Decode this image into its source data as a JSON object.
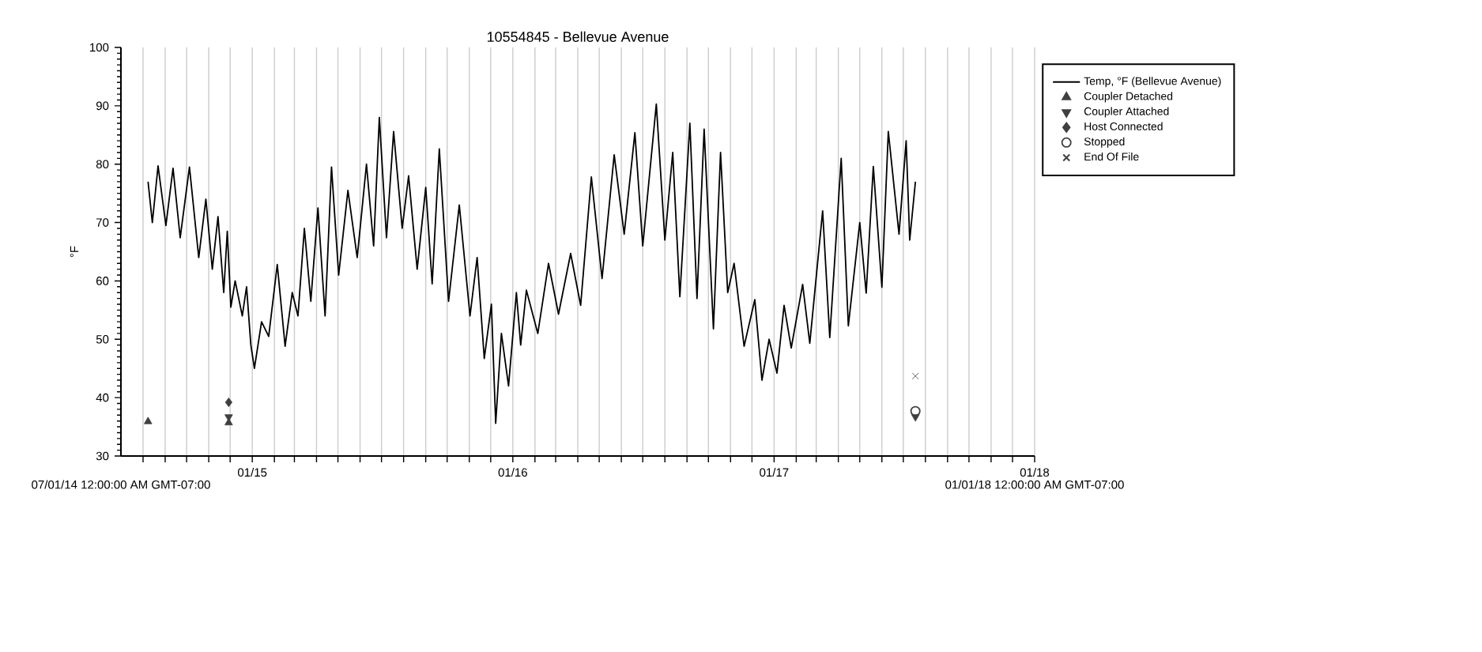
{
  "chart_data": {
    "type": "line",
    "title": "10554845 - Bellevue Avenue",
    "ylabel": "°F",
    "annotations": [
      "07/01/14 12:00:00 AM GMT-07:00",
      "01/01/18 12:00:00 AM GMT-07:00"
    ],
    "xlim": [
      "2014-07-01",
      "2018-01-01"
    ],
    "xticks": [
      {
        "value": "2014-08-01",
        "label": null
      },
      {
        "value": "2014-09-01",
        "label": null
      },
      {
        "value": "2014-10-01",
        "label": null
      },
      {
        "value": "2014-11-01",
        "label": null
      },
      {
        "value": "2014-12-01",
        "label": null
      },
      {
        "value": "2015-01-01",
        "label": "01/15"
      },
      {
        "value": "2015-02-01",
        "label": null
      },
      {
        "value": "2015-03-01",
        "label": null
      },
      {
        "value": "2015-04-01",
        "label": null
      },
      {
        "value": "2015-05-01",
        "label": null
      },
      {
        "value": "2015-06-01",
        "label": null
      },
      {
        "value": "2015-07-01",
        "label": null
      },
      {
        "value": "2015-08-01",
        "label": null
      },
      {
        "value": "2015-09-01",
        "label": null
      },
      {
        "value": "2015-10-01",
        "label": null
      },
      {
        "value": "2015-11-01",
        "label": null
      },
      {
        "value": "2015-12-01",
        "label": null
      },
      {
        "value": "2016-01-01",
        "label": "01/16"
      },
      {
        "value": "2016-02-01",
        "label": null
      },
      {
        "value": "2016-03-01",
        "label": null
      },
      {
        "value": "2016-04-01",
        "label": null
      },
      {
        "value": "2016-05-01",
        "label": null
      },
      {
        "value": "2016-06-01",
        "label": null
      },
      {
        "value": "2016-07-01",
        "label": null
      },
      {
        "value": "2016-08-01",
        "label": null
      },
      {
        "value": "2016-09-01",
        "label": null
      },
      {
        "value": "2016-10-01",
        "label": null
      },
      {
        "value": "2016-11-01",
        "label": null
      },
      {
        "value": "2016-12-01",
        "label": null
      },
      {
        "value": "2017-01-01",
        "label": "01/17"
      },
      {
        "value": "2017-02-01",
        "label": null
      },
      {
        "value": "2017-03-01",
        "label": null
      },
      {
        "value": "2017-04-01",
        "label": null
      },
      {
        "value": "2017-05-01",
        "label": null
      },
      {
        "value": "2017-06-01",
        "label": null
      },
      {
        "value": "2017-07-01",
        "label": null
      },
      {
        "value": "2017-08-01",
        "label": null
      },
      {
        "value": "2017-09-01",
        "label": null
      },
      {
        "value": "2017-10-01",
        "label": null
      },
      {
        "value": "2017-11-01",
        "label": null
      },
      {
        "value": "2017-12-01",
        "label": null
      },
      {
        "value": "2018-01-01",
        "label": "01/18"
      }
    ],
    "ylim": [
      30,
      100
    ],
    "yticks": [
      30,
      40,
      50,
      60,
      70,
      80,
      90,
      100
    ],
    "grid": "x",
    "legend": "top right",
    "series": [
      {
        "name": "Temp, °F (Bellevue Avenue)",
        "color": "#000000",
        "marker": "none",
        "line_style": "solid",
        "x": [
          "2014-08-08",
          "2014-08-14",
          "2014-08-22",
          "2014-09-02",
          "2014-09-12",
          "2014-09-22",
          "2014-10-05",
          "2014-10-18",
          "2014-10-28",
          "2014-11-06",
          "2014-11-14",
          "2014-11-22",
          "2014-11-27",
          "2014-12-02",
          "2014-12-08",
          "2014-12-18",
          "2014-12-24",
          "2014-12-30",
          "2015-01-04",
          "2015-01-14",
          "2015-01-24",
          "2015-02-05",
          "2015-02-16",
          "2015-02-26",
          "2015-03-06",
          "2015-03-15",
          "2015-03-24",
          "2015-04-03",
          "2015-04-13",
          "2015-04-22",
          "2015-05-02",
          "2015-05-15",
          "2015-05-28",
          "2015-06-10",
          "2015-06-20",
          "2015-06-28",
          "2015-07-08",
          "2015-07-18",
          "2015-07-30",
          "2015-08-08",
          "2015-08-20",
          "2015-09-01",
          "2015-09-10",
          "2015-09-20",
          "2015-10-03",
          "2015-10-18",
          "2015-11-02",
          "2015-11-12",
          "2015-11-22",
          "2015-12-02",
          "2015-12-08",
          "2015-12-16",
          "2015-12-26",
          "2016-01-06",
          "2016-01-12",
          "2016-01-20",
          "2016-02-05",
          "2016-02-20",
          "2016-03-05",
          "2016-03-22",
          "2016-04-05",
          "2016-04-20",
          "2016-05-05",
          "2016-05-22",
          "2016-06-05",
          "2016-06-20",
          "2016-07-01",
          "2016-07-20",
          "2016-08-01",
          "2016-08-12",
          "2016-08-22",
          "2016-09-05",
          "2016-09-15",
          "2016-09-25",
          "2016-10-08",
          "2016-10-18",
          "2016-10-28",
          "2016-11-06",
          "2016-11-20",
          "2016-12-05",
          "2016-12-15",
          "2016-12-25",
          "2017-01-05",
          "2017-01-15",
          "2017-01-25",
          "2017-02-10",
          "2017-02-20",
          "2017-03-10",
          "2017-03-20",
          "2017-04-05",
          "2017-04-15",
          "2017-05-01",
          "2017-05-10",
          "2017-05-20",
          "2017-06-01",
          "2017-06-10",
          "2017-06-25",
          "2017-07-05",
          "2017-07-10",
          "2017-07-18"
        ],
        "values": [
          77,
          70,
          79.7,
          69.5,
          79.3,
          67.4,
          79.5,
          64,
          74,
          62,
          71,
          58,
          68.5,
          55.5,
          60,
          54,
          59,
          49,
          45,
          53,
          50.5,
          62.8,
          48.8,
          58,
          54,
          69,
          56.5,
          72.5,
          54,
          79.5,
          61,
          75.5,
          64,
          80,
          66,
          88,
          67.4,
          85.6,
          69,
          78,
          62,
          76,
          59.5,
          82.6,
          56.5,
          73,
          54,
          64,
          46.7,
          56,
          35.6,
          51,
          42,
          58,
          49,
          58.4,
          51,
          63,
          54.3,
          64.7,
          55.8,
          77.8,
          60.4,
          81.6,
          68,
          85.4,
          66,
          90.3,
          67,
          82,
          57.3,
          87,
          57,
          86,
          51.8,
          82,
          58,
          63,
          48.8,
          56.8,
          43,
          50,
          44.2,
          55.8,
          48.5,
          59.4,
          49.3,
          72,
          50.3,
          81,
          52.3,
          70,
          57.9,
          79.6,
          58.9,
          85.6,
          68,
          84,
          67,
          77
        ]
      },
      {
        "name": "Coupler Detached",
        "type": "scatter",
        "color": "#404040",
        "marker": "triangle",
        "x": [
          "2014-08-08",
          "2014-11-29"
        ],
        "values": [
          35.9,
          35.7
        ]
      },
      {
        "name": "Coupler Attached",
        "type": "scatter",
        "color": "#404040",
        "marker": "triangle_down",
        "x": [
          "2014-11-29",
          "2017-07-18"
        ],
        "values": [
          36.7,
          36.7
        ]
      },
      {
        "name": "Host Connected",
        "type": "scatter",
        "color": "#404040",
        "marker": "diamond",
        "x": [
          "2014-11-29"
        ],
        "values": [
          39.2
        ]
      },
      {
        "name": "Stopped",
        "type": "scatter",
        "color": "#404040",
        "marker": "circle",
        "x": [
          "2017-07-18"
        ],
        "values": [
          37.7
        ]
      },
      {
        "name": "End Of File",
        "type": "scatter",
        "color": "#404040",
        "marker": "cross",
        "x": [
          "2017-07-18"
        ],
        "values": [
          43.7
        ]
      }
    ]
  }
}
